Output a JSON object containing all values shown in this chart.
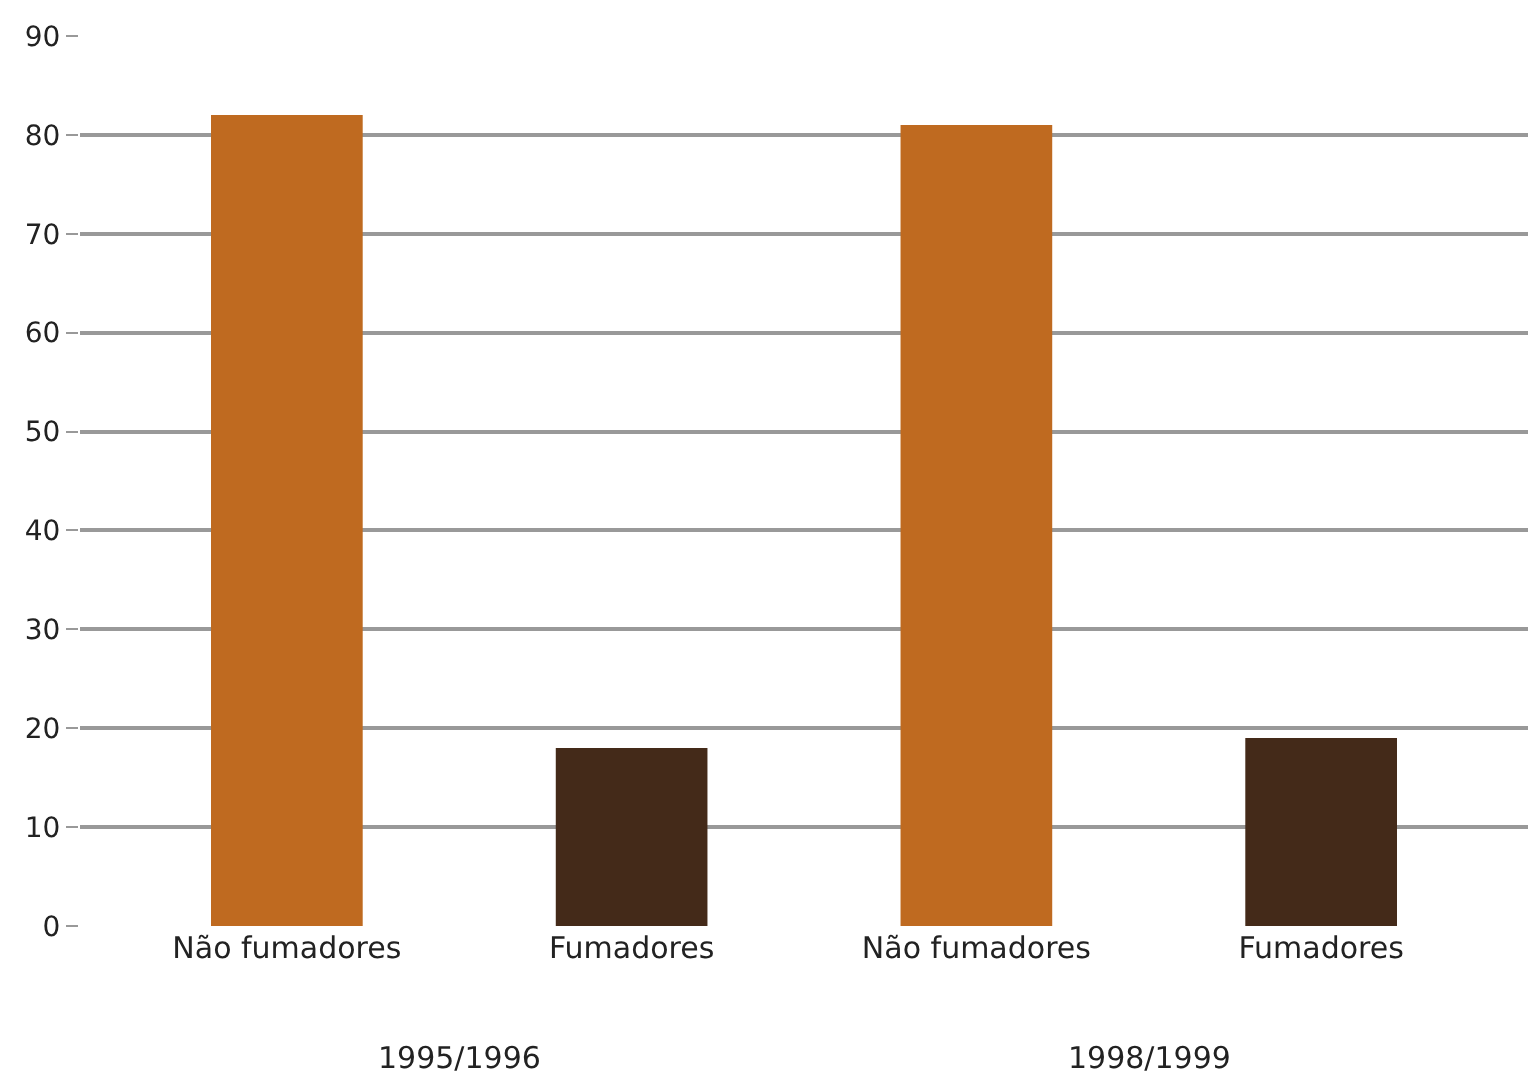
{
  "chart_data": {
    "type": "bar",
    "categories": [
      "Não fumadores",
      "Fumadores",
      "Não fumadores",
      "Fumadores"
    ],
    "values": [
      82,
      18,
      81,
      19
    ],
    "colors": [
      "#bf6a20",
      "#442a19",
      "#bf6a20",
      "#442a19"
    ],
    "ylim": [
      0,
      90
    ],
    "yticks": [
      0,
      10,
      20,
      30,
      40,
      50,
      60,
      70,
      80,
      90
    ],
    "grid": "y",
    "annotations": [
      "1995/1996",
      "1998/1999"
    ]
  }
}
